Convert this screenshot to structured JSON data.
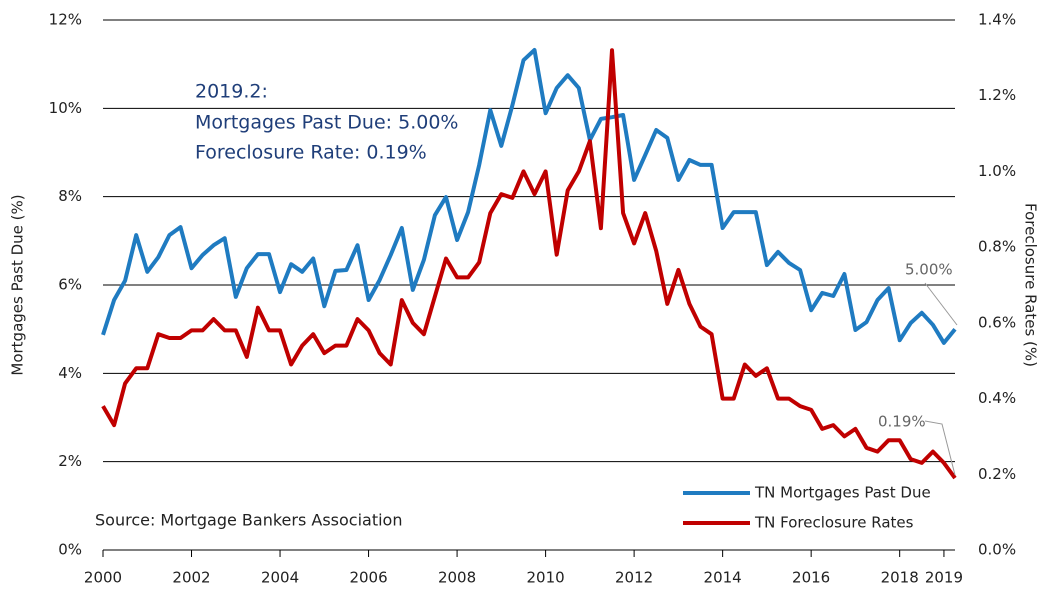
{
  "chart_data": {
    "type": "line",
    "ylabel": "Mortgages Past Due (%)",
    "y2label": "Foreclosure Rates (%)",
    "x": [
      2000,
      2000.25,
      2000.5,
      2000.75,
      2001,
      2001.25,
      2001.5,
      2001.75,
      2002,
      2002.25,
      2002.5,
      2002.75,
      2003,
      2003.25,
      2003.5,
      2003.75,
      2004,
      2004.25,
      2004.5,
      2004.75,
      2005,
      2005.25,
      2005.5,
      2005.75,
      2006,
      2006.25,
      2006.5,
      2006.75,
      2007,
      2007.25,
      2007.5,
      2007.75,
      2008,
      2008.25,
      2008.5,
      2008.75,
      2009,
      2009.25,
      2009.5,
      2009.75,
      2010,
      2010.25,
      2010.5,
      2010.75,
      2011,
      2011.25,
      2011.5,
      2011.75,
      2012,
      2012.25,
      2012.5,
      2012.75,
      2013,
      2013.25,
      2013.5,
      2013.75,
      2014,
      2014.25,
      2014.5,
      2014.75,
      2015,
      2015.25,
      2015.5,
      2015.75,
      2016,
      2016.25,
      2016.5,
      2016.75,
      2017,
      2017.25,
      2017.5,
      2017.75,
      2018,
      2018.25,
      2018.5,
      2018.75,
      2019,
      2019.25
    ],
    "series": [
      {
        "name": "TN Mortgages Past Due",
        "color": "#1f7bc1",
        "axis": "y",
        "values": [
          4.87,
          5.66,
          6.1,
          7.13,
          6.3,
          6.63,
          7.13,
          7.31,
          6.38,
          6.68,
          6.9,
          7.06,
          5.73,
          6.38,
          6.7,
          6.7,
          5.84,
          6.47,
          6.3,
          6.6,
          5.52,
          6.32,
          6.34,
          6.9,
          5.66,
          6.11,
          6.68,
          7.29,
          5.89,
          6.57,
          7.58,
          7.99,
          7.02,
          7.65,
          8.72,
          9.96,
          9.15,
          10.07,
          11.09,
          11.32,
          9.89,
          10.46,
          10.75,
          10.46,
          9.28,
          9.76,
          9.8,
          9.85,
          8.38,
          8.94,
          9.51,
          9.33,
          8.38,
          8.83,
          8.72,
          8.72,
          7.29,
          7.65,
          7.65,
          7.65,
          6.45,
          6.75,
          6.5,
          6.34,
          5.43,
          5.82,
          5.75,
          6.25,
          4.98,
          5.16,
          5.66,
          5.93,
          4.75,
          5.14,
          5.37,
          5.1,
          4.69,
          5.0
        ]
      },
      {
        "name": "TN Foreclosure Rates",
        "color": "#c00000",
        "axis": "y2",
        "values": [
          0.38,
          0.33,
          0.44,
          0.48,
          0.48,
          0.57,
          0.56,
          0.56,
          0.58,
          0.58,
          0.61,
          0.58,
          0.58,
          0.51,
          0.64,
          0.58,
          0.58,
          0.49,
          0.54,
          0.57,
          0.52,
          0.54,
          0.54,
          0.61,
          0.58,
          0.52,
          0.49,
          0.66,
          0.6,
          0.57,
          0.67,
          0.77,
          0.72,
          0.72,
          0.76,
          0.89,
          0.94,
          0.93,
          1.0,
          0.94,
          1.0,
          0.78,
          0.95,
          1.0,
          1.08,
          0.85,
          1.32,
          0.89,
          0.81,
          0.89,
          0.79,
          0.65,
          0.74,
          0.65,
          0.59,
          0.57,
          0.4,
          0.4,
          0.49,
          0.46,
          0.48,
          0.4,
          0.4,
          0.38,
          0.37,
          0.32,
          0.33,
          0.3,
          0.32,
          0.27,
          0.26,
          0.29,
          0.29,
          0.24,
          0.23,
          0.26,
          0.23,
          0.19
        ]
      }
    ],
    "xlim": [
      2000,
      2019.25
    ],
    "xticks": [
      2000,
      2002,
      2004,
      2006,
      2008,
      2010,
      2012,
      2014,
      2016,
      2018,
      2019
    ],
    "ylim": [
      0,
      12
    ],
    "yticks": [
      {
        "value": 0,
        "label": "0%"
      },
      {
        "value": 2,
        "label": "2%"
      },
      {
        "value": 4,
        "label": "4%"
      },
      {
        "value": 6,
        "label": "6%"
      },
      {
        "value": 8,
        "label": "8%"
      },
      {
        "value": 10,
        "label": "10%"
      },
      {
        "value": 12,
        "label": "12%"
      }
    ],
    "y2lim": [
      0,
      1.4
    ],
    "y2ticks": [
      {
        "value": 0,
        "label": "0.0%"
      },
      {
        "value": 0.2,
        "label": "0.2%"
      },
      {
        "value": 0.4,
        "label": "0.4%"
      },
      {
        "value": 0.6,
        "label": "0.6%"
      },
      {
        "value": 0.8,
        "label": "0.8%"
      },
      {
        "value": 1.0,
        "label": "1.0%"
      },
      {
        "value": 1.2,
        "label": "1.2%"
      },
      {
        "value": 1.4,
        "label": "1.4%"
      }
    ],
    "grid": true,
    "legend": "lower right",
    "annotations": [
      "2019.2:",
      "Mortgages Past Due: 5.00%",
      "Foreclosure Rate: 0.19%",
      "Source: Mortgage Bankers Association",
      "5.00%",
      "0.19%"
    ]
  }
}
